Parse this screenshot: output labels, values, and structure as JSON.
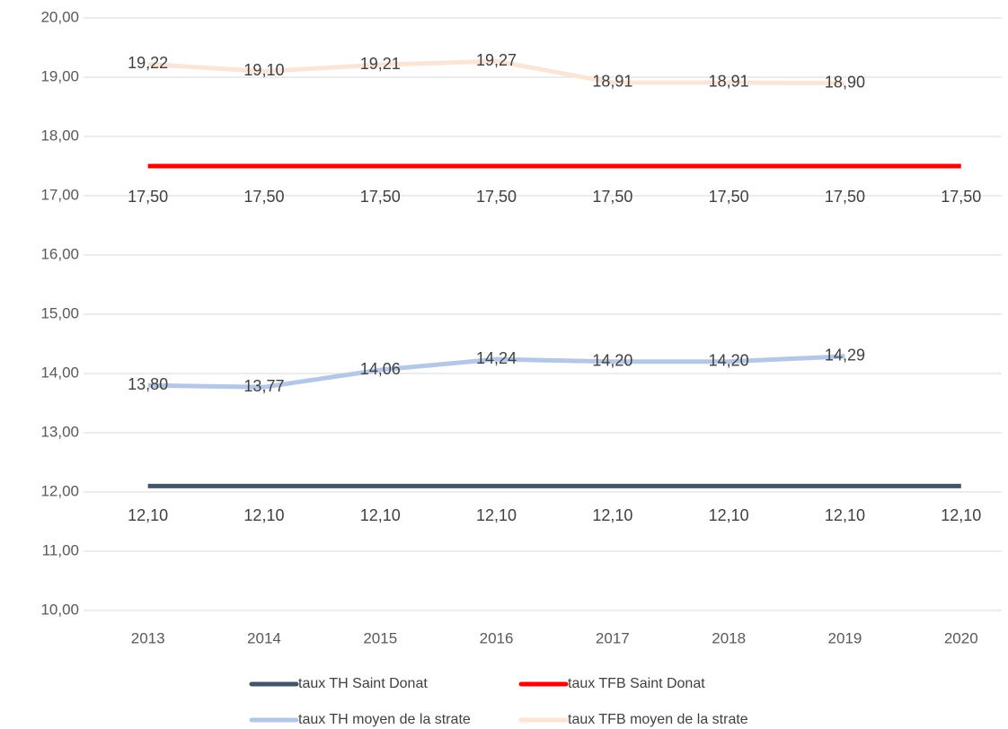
{
  "chart_data": {
    "type": "line",
    "categories": [
      "2013",
      "2014",
      "2015",
      "2016",
      "2017",
      "2018",
      "2019",
      "2020"
    ],
    "ylim": [
      10,
      20
    ],
    "yticks": [
      {
        "value": 10,
        "label": "10,00"
      },
      {
        "value": 11,
        "label": "11,00"
      },
      {
        "value": 12,
        "label": "12,00"
      },
      {
        "value": 13,
        "label": "13,00"
      },
      {
        "value": 14,
        "label": "14,00"
      },
      {
        "value": 15,
        "label": "15,00"
      },
      {
        "value": 16,
        "label": "16,00"
      },
      {
        "value": 17,
        "label": "17,00"
      },
      {
        "value": 18,
        "label": "18,00"
      },
      {
        "value": 19,
        "label": "19,00"
      },
      {
        "value": 20,
        "label": "20,00"
      }
    ],
    "grid": true,
    "legend": "bottom",
    "series": [
      {
        "name": "taux TH Saint Donat",
        "color": "#44546a",
        "values": [
          12.1,
          12.1,
          12.1,
          12.1,
          12.1,
          12.1,
          12.1,
          12.1
        ],
        "value_labels": [
          "12,10",
          "12,10",
          "12,10",
          "12,10",
          "12,10",
          "12,10",
          "12,10",
          "12,10"
        ]
      },
      {
        "name": "taux TFB Saint Donat",
        "color": "#ff0000",
        "values": [
          17.5,
          17.5,
          17.5,
          17.5,
          17.5,
          17.5,
          17.5,
          17.5
        ],
        "value_labels": [
          "17,50",
          "17,50",
          "17,50",
          "17,50",
          "17,50",
          "17,50",
          "17,50",
          "17,50"
        ]
      },
      {
        "name": "taux TH moyen de la strate",
        "color": "#b4c7e7",
        "values": [
          13.8,
          13.77,
          14.06,
          14.24,
          14.2,
          14.2,
          14.29,
          null
        ],
        "value_labels": [
          "13,80",
          "13,77",
          "14,06",
          "14,24",
          "14,20",
          "14,20",
          "14,29",
          null
        ]
      },
      {
        "name": "taux TFB moyen de la strate",
        "color": "#fbe5d6",
        "values": [
          19.22,
          19.1,
          19.21,
          19.27,
          18.91,
          18.91,
          18.9,
          null
        ],
        "value_labels": [
          "19,22",
          "19,10",
          "19,21",
          "19,27",
          "18,91",
          "18,91",
          "18,90",
          null
        ]
      }
    ]
  }
}
